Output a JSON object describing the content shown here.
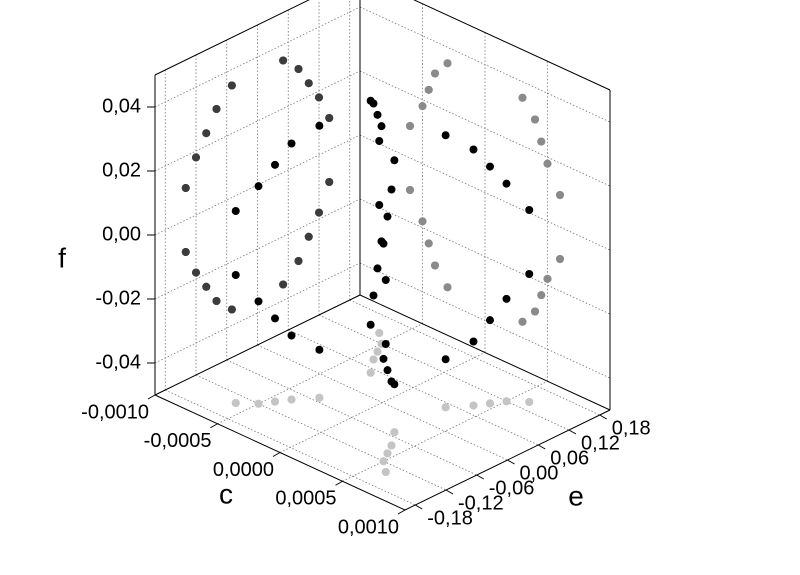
{
  "chart_data": {
    "type": "scatter3d",
    "x_label": "c",
    "y_label": "e",
    "z_label": "f",
    "xlim": [
      -0.001,
      0.001
    ],
    "ylim": [
      -0.2,
      0.2
    ],
    "zlim": [
      -0.05,
      0.05
    ],
    "xticks": [
      {
        "value": -0.001,
        "label": "-0,0010"
      },
      {
        "value": -0.0005,
        "label": "-0,0005"
      },
      {
        "value": 0,
        "label": "0,0000"
      },
      {
        "value": 0.0005,
        "label": "0,0005"
      },
      {
        "value": 0.001,
        "label": "0,0010"
      }
    ],
    "yticks": [
      {
        "value": -0.18,
        "label": "-0,18"
      },
      {
        "value": -0.12,
        "label": "-0,12"
      },
      {
        "value": -0.06,
        "label": "-0,06"
      },
      {
        "value": 0,
        "label": "0,00"
      },
      {
        "value": 0.06,
        "label": "0,06"
      },
      {
        "value": 0.12,
        "label": "0,12"
      },
      {
        "value": 0.18,
        "label": "0,18"
      }
    ],
    "zticks": [
      {
        "value": -0.04,
        "label": "-0,04"
      },
      {
        "value": -0.02,
        "label": "-0,02"
      },
      {
        "value": 0,
        "label": "0,00"
      },
      {
        "value": 0.02,
        "label": "0,02"
      },
      {
        "value": 0.04,
        "label": "0,04"
      }
    ],
    "grid": true,
    "color": "#000000",
    "projection_colors": {
      "cf_wall": "#3c3c3c",
      "ef_wall": "#8a8a8a",
      "floor": "#c4c4c4"
    },
    "series": [
      {
        "c": [
          -0.0003,
          -0.0004,
          -0.00045,
          -0.0005,
          -0.0006,
          -0.0003,
          -0.0004,
          -0.00045,
          -0.0005,
          -0.0006,
          -0.0003,
          -0.0004,
          -0.00045,
          -0.0005,
          -0.0006,
          -0.0003,
          -0.0004,
          -0.00045,
          -0.0005,
          -0.0006,
          0.0003,
          0.0004,
          0.00045,
          0.0005,
          0.0006,
          0.0003,
          0.0004,
          0.00045,
          0.0005,
          0.0006,
          0.0003,
          0.0004,
          0.00045,
          0.0005,
          0.0006,
          0.0003,
          0.0004,
          0.00045,
          0.0005,
          0.0006
        ],
        "e": [
          -0.05,
          -0.08,
          -0.1,
          -0.12,
          -0.14,
          -0.05,
          -0.08,
          -0.1,
          -0.12,
          -0.14,
          0.05,
          0.08,
          0.1,
          0.12,
          0.14,
          0.05,
          0.08,
          0.1,
          0.12,
          0.14,
          -0.05,
          -0.08,
          -0.1,
          -0.12,
          -0.14,
          -0.05,
          -0.08,
          -0.1,
          -0.12,
          -0.14,
          0.05,
          0.08,
          0.1,
          0.12,
          0.14,
          0.05,
          0.08,
          0.1,
          0.12,
          0.14
        ],
        "f": [
          -0.035,
          -0.03,
          -0.024,
          -0.018,
          -0.01,
          0.035,
          0.03,
          0.024,
          0.018,
          0.01,
          -0.035,
          -0.03,
          -0.024,
          -0.018,
          -0.01,
          0.035,
          0.03,
          0.024,
          0.018,
          0.01,
          -0.035,
          -0.03,
          -0.024,
          -0.018,
          -0.01,
          0.035,
          0.03,
          0.024,
          0.018,
          0.01,
          -0.035,
          -0.03,
          -0.024,
          -0.018,
          -0.01,
          0.035,
          0.03,
          0.024,
          0.018,
          0.01
        ]
      }
    ]
  }
}
